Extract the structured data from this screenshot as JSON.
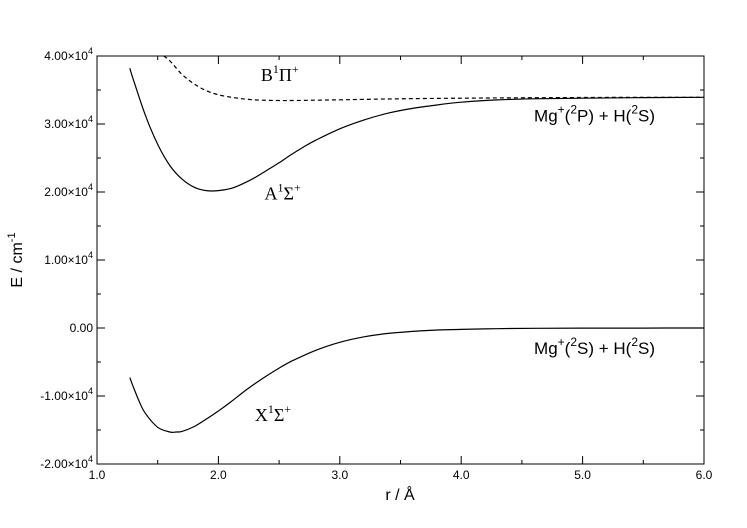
{
  "chart_data": {
    "type": "line",
    "title": "",
    "xlabel": "r / Å",
    "ylabel": "E / cm",
    "ylabel_sup": "-1",
    "xlim": [
      1.0,
      6.0
    ],
    "ylim": [
      -20000,
      40000
    ],
    "x_ticks": [
      1.0,
      2.0,
      3.0,
      4.0,
      5.0,
      6.0
    ],
    "x_tick_labels": [
      "1.0",
      "2.0",
      "3.0",
      "4.0",
      "5.0",
      "6.0"
    ],
    "y_ticks": [
      -20000,
      -10000,
      0,
      10000,
      20000,
      30000,
      40000
    ],
    "y_tick_labels": [
      {
        "mant": "-2.00×10",
        "exp": "4"
      },
      {
        "mant": "-1.00×10",
        "exp": "4"
      },
      {
        "mant": "0.00",
        "exp": ""
      },
      {
        "mant": "1.00×10",
        "exp": "4"
      },
      {
        "mant": "2.00×10",
        "exp": "4"
      },
      {
        "mant": "3.00×10",
        "exp": "4"
      },
      {
        "mant": "4.00×10",
        "exp": "4"
      }
    ],
    "grid": false,
    "legend": "none",
    "series": [
      {
        "style": "dashed",
        "x": [
          1.55,
          1.6,
          1.7,
          1.8,
          1.9,
          2.0,
          2.1,
          2.2,
          2.3,
          2.4,
          2.5,
          2.6,
          2.8,
          3.0,
          3.2,
          3.5,
          4.0,
          4.5,
          5.0,
          5.5,
          6.0
        ],
        "y": [
          40000,
          39300,
          37300,
          35900,
          34900,
          34300,
          33950,
          33700,
          33550,
          33480,
          33450,
          33450,
          33500,
          33560,
          33620,
          33700,
          33800,
          33850,
          33900,
          33920,
          33930
        ]
      },
      {
        "style": "solid",
        "x": [
          1.27,
          1.3,
          1.4,
          1.5,
          1.6,
          1.7,
          1.8,
          1.9,
          2.0,
          2.1,
          2.2,
          2.3,
          2.4,
          2.5,
          2.6,
          2.7,
          2.8,
          3.0,
          3.2,
          3.4,
          3.6,
          3.8,
          4.0,
          4.3,
          4.6,
          5.0,
          5.5,
          6.0
        ],
        "y": [
          38200,
          36500,
          31200,
          27000,
          23900,
          21900,
          20700,
          20200,
          20200,
          20500,
          21200,
          22100,
          23200,
          24300,
          25500,
          26600,
          27600,
          29300,
          30600,
          31600,
          32300,
          32800,
          33200,
          33550,
          33700,
          33800,
          33880,
          33930
        ]
      },
      {
        "style": "solid",
        "x": [
          1.27,
          1.3,
          1.35,
          1.4,
          1.5,
          1.6,
          1.65,
          1.7,
          1.8,
          1.9,
          2.0,
          2.1,
          2.2,
          2.3,
          2.4,
          2.5,
          2.6,
          2.8,
          3.0,
          3.2,
          3.4,
          3.6,
          3.8,
          4.0,
          4.3,
          4.6,
          5.0,
          5.5,
          6.0
        ],
        "y": [
          -7300,
          -8700,
          -10900,
          -12600,
          -14600,
          -15300,
          -15300,
          -15200,
          -14500,
          -13400,
          -12200,
          -10900,
          -9500,
          -8200,
          -7000,
          -5900,
          -4900,
          -3300,
          -2100,
          -1300,
          -800,
          -500,
          -300,
          -200,
          -100,
          -50,
          -20,
          -10,
          0
        ]
      }
    ],
    "annotations": [
      {
        "letter": "B",
        "sup1": "1",
        "greek": "Π",
        "sup2": "+",
        "x": 2.35,
        "y": 36300
      },
      {
        "letter": "A",
        "sup1": "1",
        "greek": "Σ",
        "sup2": "+",
        "x": 2.38,
        "y": 18900
      },
      {
        "letter": "X",
        "sup1": "1",
        "greek": "Σ",
        "sup2": "+",
        "x": 2.3,
        "y": -13700
      },
      {
        "text": "Mg",
        "sup": "+",
        "rest": "(",
        "sup_b": "2",
        "rest2": "P) + H(",
        "sup_c": "2",
        "rest3": "S)",
        "x": 4.6,
        "y": 30400
      },
      {
        "text": "Mg",
        "sup": "+",
        "rest": "(",
        "sup_b": "2",
        "rest2": "S) + H(",
        "sup_c": "2",
        "rest3": "S)",
        "x": 4.6,
        "y": -3800
      }
    ]
  }
}
